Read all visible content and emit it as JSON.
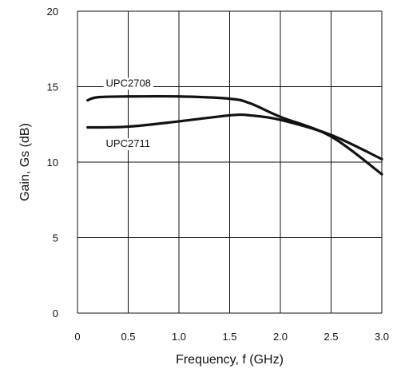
{
  "chart_data": {
    "type": "line",
    "xlabel": "Frequency, f (GHz)",
    "ylabel": "Gain, Gs (dB)",
    "xlim": [
      0,
      3.0
    ],
    "ylim": [
      0,
      20
    ],
    "x_ticks": [
      "0",
      "0.5",
      "1.0",
      "1.5",
      "2.0",
      "2.5",
      "3.0"
    ],
    "y_ticks": [
      "0",
      "5",
      "10",
      "15",
      "20"
    ],
    "grid": true,
    "series": [
      {
        "name": "UPC2708",
        "x": [
          0.1,
          0.2,
          0.5,
          1.0,
          1.5,
          1.7,
          2.0,
          2.5,
          3.0
        ],
        "y": [
          14.1,
          14.3,
          14.35,
          14.35,
          14.2,
          13.9,
          13.0,
          11.7,
          9.2
        ]
      },
      {
        "name": "UPC2711",
        "x": [
          0.1,
          0.5,
          1.0,
          1.5,
          1.7,
          2.0,
          2.5,
          3.0
        ],
        "y": [
          12.3,
          12.35,
          12.7,
          13.1,
          13.1,
          12.8,
          11.8,
          10.2
        ]
      }
    ]
  }
}
